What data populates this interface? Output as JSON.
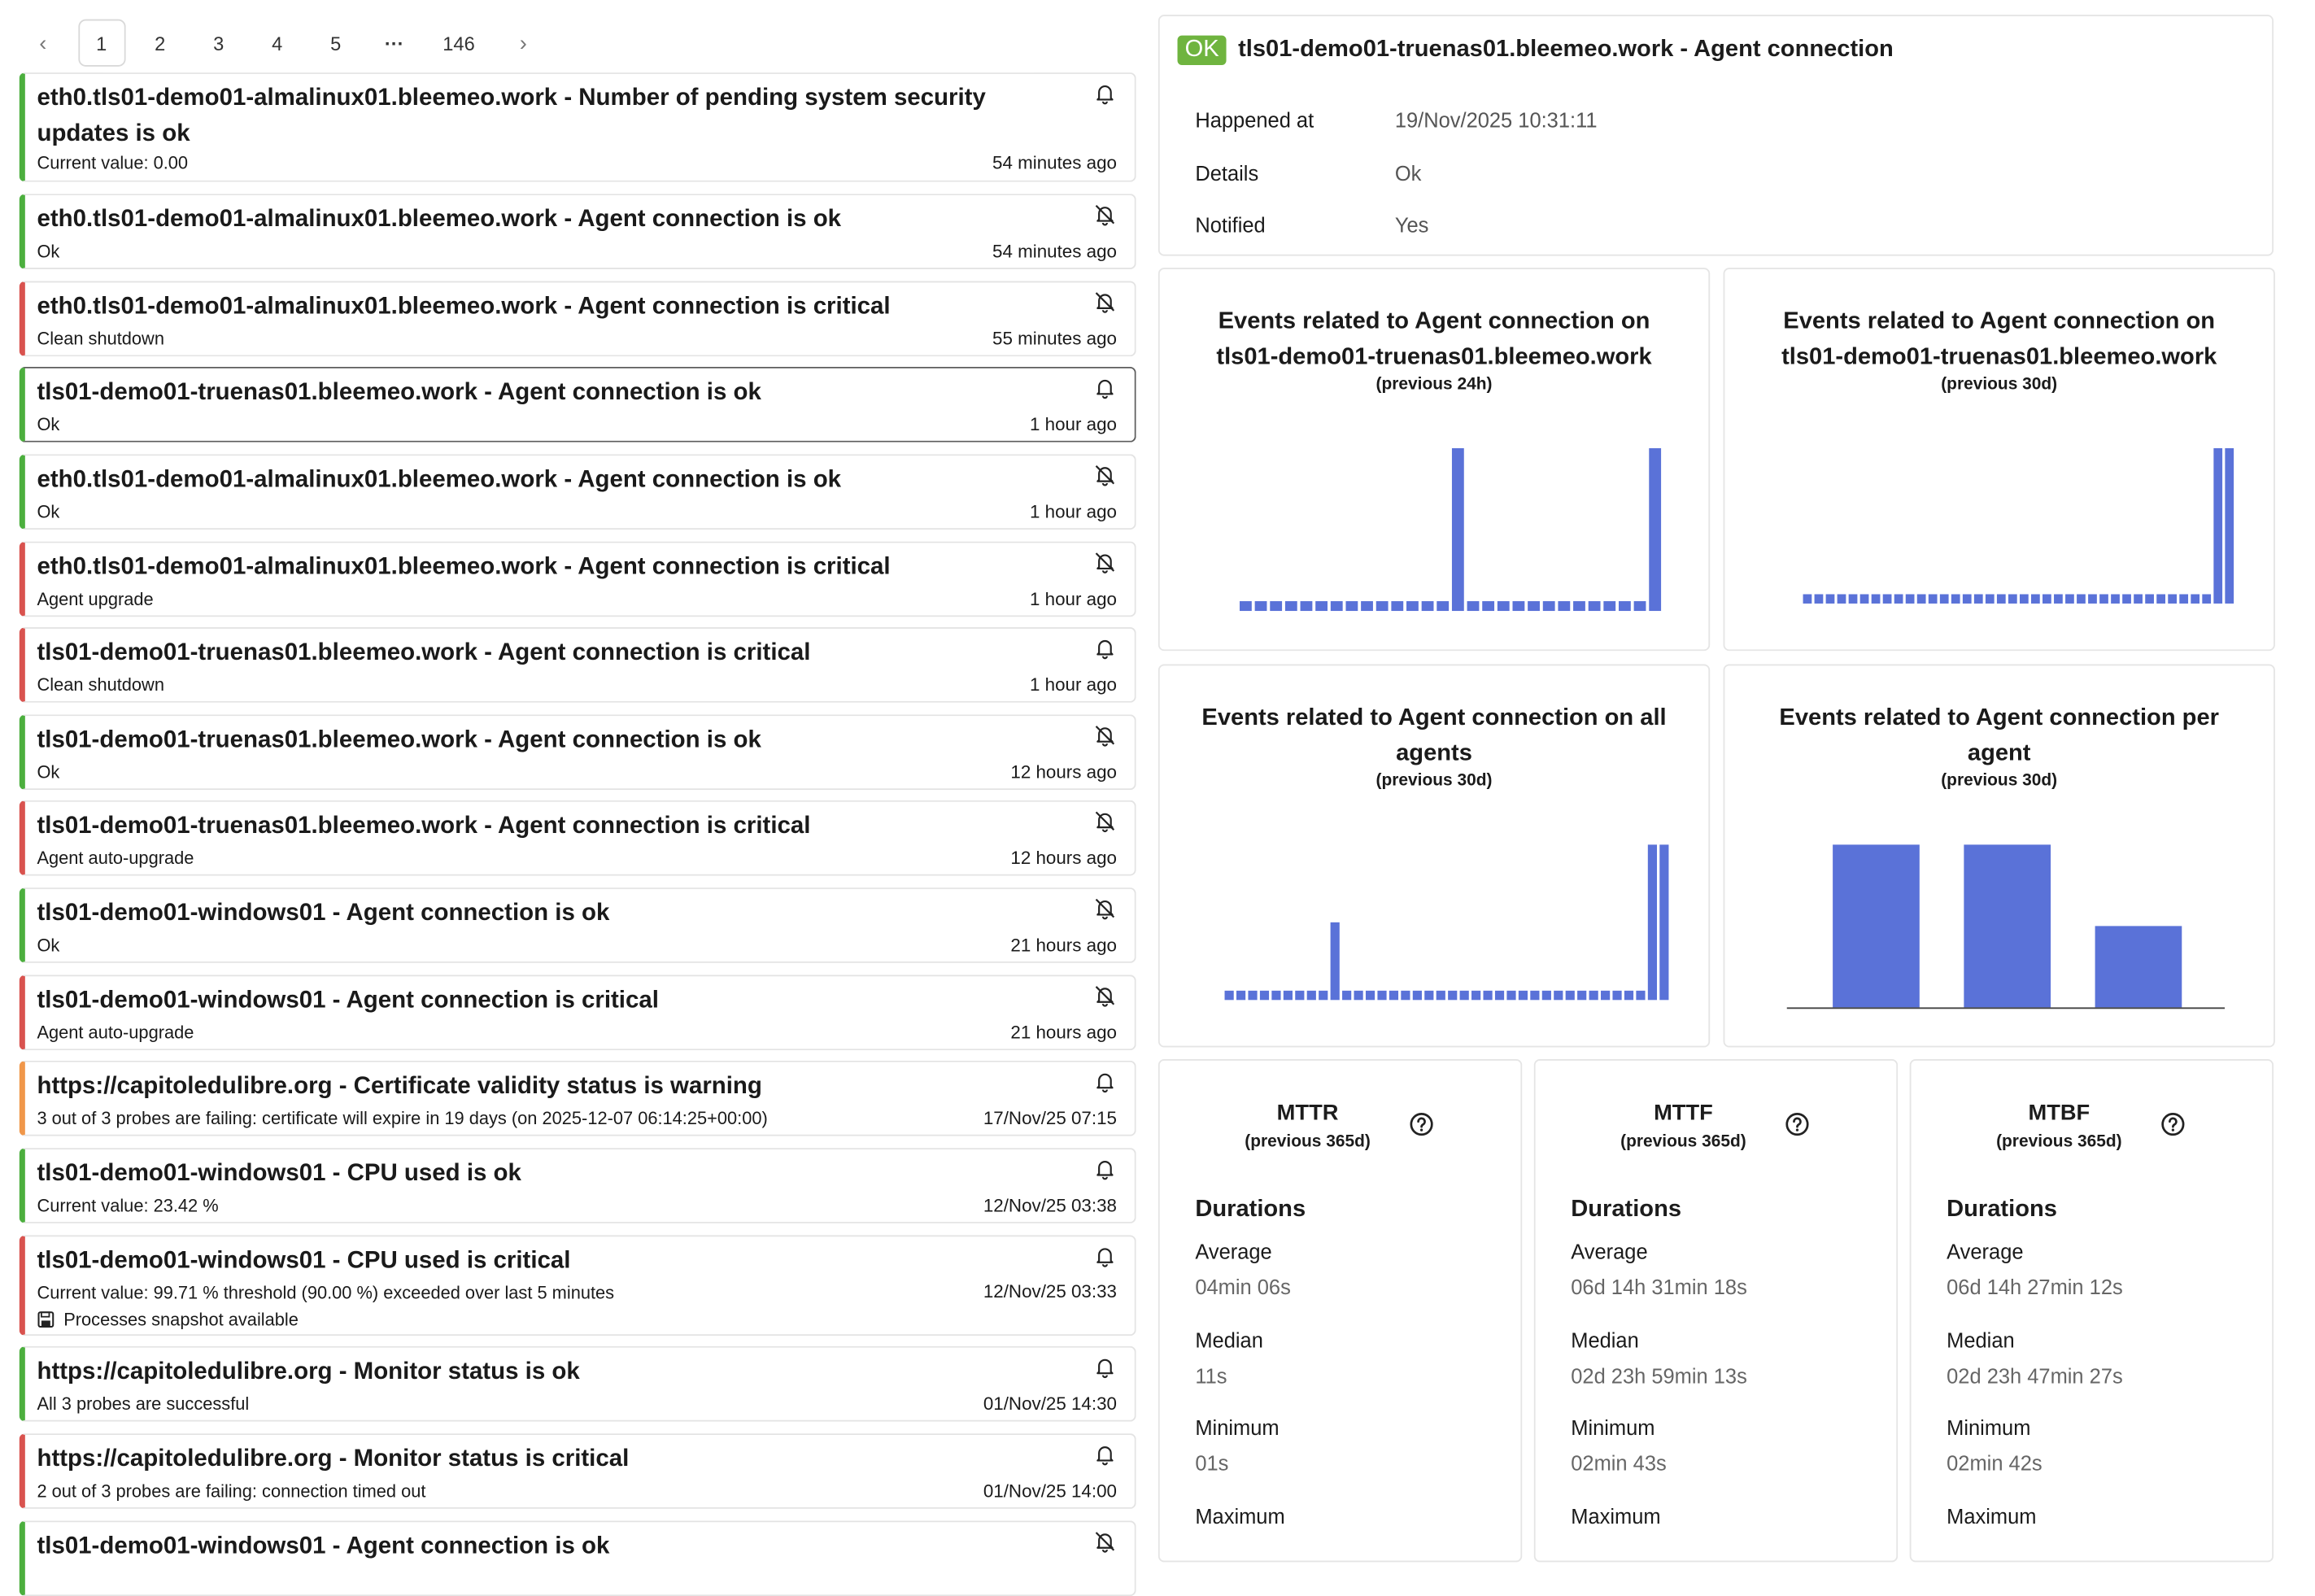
{
  "pagination": {
    "pages": [
      "1",
      "2",
      "3",
      "4",
      "5"
    ],
    "ellipsis": "···",
    "last": "146",
    "current": "1"
  },
  "events": [
    {
      "title": "eth0.tls01-demo01-almalinux01.bleemeo.work - Number of pending system security updates is ok",
      "sub": "Current value: 0.00",
      "time": "54 minutes ago",
      "status": "ok",
      "notif": "bell"
    },
    {
      "title": "eth0.tls01-demo01-almalinux01.bleemeo.work - Agent connection is ok",
      "sub": "Ok",
      "time": "54 minutes ago",
      "status": "ok",
      "notif": "bell-off"
    },
    {
      "title": "eth0.tls01-demo01-almalinux01.bleemeo.work - Agent connection is critical",
      "sub": "Clean shutdown",
      "time": "55 minutes ago",
      "status": "critical",
      "notif": "bell-off"
    },
    {
      "title": "tls01-demo01-truenas01.bleemeo.work - Agent connection is ok",
      "sub": "Ok",
      "time": "1 hour ago",
      "status": "ok",
      "notif": "bell",
      "selected": true
    },
    {
      "title": "eth0.tls01-demo01-almalinux01.bleemeo.work - Agent connection is ok",
      "sub": "Ok",
      "time": "1 hour ago",
      "status": "ok",
      "notif": "bell-off"
    },
    {
      "title": "eth0.tls01-demo01-almalinux01.bleemeo.work - Agent connection is critical",
      "sub": "Agent upgrade",
      "time": "1 hour ago",
      "status": "critical",
      "notif": "bell-off"
    },
    {
      "title": "tls01-demo01-truenas01.bleemeo.work - Agent connection is critical",
      "sub": "Clean shutdown",
      "time": "1 hour ago",
      "status": "critical",
      "notif": "bell"
    },
    {
      "title": "tls01-demo01-truenas01.bleemeo.work - Agent connection is ok",
      "sub": "Ok",
      "time": "12 hours ago",
      "status": "ok",
      "notif": "bell-off"
    },
    {
      "title": "tls01-demo01-truenas01.bleemeo.work - Agent connection is critical",
      "sub": "Agent auto-upgrade",
      "time": "12 hours ago",
      "status": "critical",
      "notif": "bell-off"
    },
    {
      "title": "tls01-demo01-windows01 - Agent connection is ok",
      "sub": "Ok",
      "time": "21 hours ago",
      "status": "ok",
      "notif": "bell-off"
    },
    {
      "title": "tls01-demo01-windows01 - Agent connection is critical",
      "sub": "Agent auto-upgrade",
      "time": "21 hours ago",
      "status": "critical",
      "notif": "bell-off"
    },
    {
      "title": "https://capitoledulibre.org - Certificate validity status is warning",
      "sub": "3 out of 3 probes are failing: certificate will expire in 19 days (on 2025-12-07 06:14:25+00:00)",
      "time": "17/Nov/25 07:15",
      "status": "warning",
      "notif": "bell"
    },
    {
      "title": "tls01-demo01-windows01 - CPU used is ok",
      "sub": "Current value: 23.42 %",
      "time": "12/Nov/25 03:38",
      "status": "ok",
      "notif": "bell"
    },
    {
      "title": "tls01-demo01-windows01 - CPU used is critical",
      "sub": "Current value: 99.71 % threshold (90.00 %) exceeded over last 5 minutes",
      "snapshot": "Processes snapshot available",
      "time": "12/Nov/25 03:33",
      "status": "critical",
      "notif": "bell"
    },
    {
      "title": "https://capitoledulibre.org - Monitor status is ok",
      "sub": "All 3 probes are successful",
      "time": "01/Nov/25 14:30",
      "status": "ok",
      "notif": "bell"
    },
    {
      "title": "https://capitoledulibre.org - Monitor status is critical",
      "sub": "2 out of 3 probes are failing: connection timed out",
      "time": "01/Nov/25 14:00",
      "status": "critical",
      "notif": "bell"
    },
    {
      "title": "tls01-demo01-windows01 - Agent connection is ok",
      "sub": "",
      "time": "",
      "status": "ok",
      "notif": "bell-off"
    }
  ],
  "detail": {
    "badge": "OK",
    "title": "tls01-demo01-truenas01.bleemeo.work - Agent connection",
    "rows": [
      {
        "key": "Happened at",
        "value": "19/Nov/2025 10:31:11"
      },
      {
        "key": "Details",
        "value": "Ok"
      },
      {
        "key": "Notified",
        "value": "Yes"
      }
    ]
  },
  "colors": {
    "ok": "#4caf3e",
    "critical": "#d9534f",
    "warning": "#f0974a",
    "bar": "#5a72d8"
  },
  "chart_data": [
    {
      "type": "bar",
      "title_lines": [
        "Events related to Agent connection on",
        "tls01-demo01-truenas01.bleemeo.work"
      ],
      "subtitle": "(previous 24h)",
      "values": [
        0.06,
        0.06,
        0.06,
        0.06,
        0.06,
        0.06,
        0.06,
        0.06,
        0.06,
        0.06,
        0.06,
        0.06,
        0.06,
        0.06,
        1,
        0.06,
        0.06,
        0.06,
        0.06,
        0.06,
        0.06,
        0.06,
        0.06,
        0.06,
        0.06,
        0.06,
        0.06,
        1
      ]
    },
    {
      "type": "bar",
      "title_lines": [
        "Events related to Agent connection on",
        "tls01-demo01-truenas01.bleemeo.work"
      ],
      "subtitle": "(previous 30d)",
      "values": [
        0.06,
        0.06,
        0.06,
        0.06,
        0.06,
        0.06,
        0.06,
        0.06,
        0.06,
        0.06,
        0.06,
        0.06,
        0.06,
        0.06,
        0.06,
        0.06,
        0.06,
        0.06,
        0.06,
        0.06,
        0.06,
        0.06,
        0.06,
        0.06,
        0.06,
        0.06,
        0.06,
        0.06,
        0.06,
        0.06,
        0.06,
        0.06,
        0.06,
        0.06,
        0.06,
        0.06,
        1,
        1
      ]
    },
    {
      "type": "bar",
      "title_lines": [
        "Events related to Agent connection on all",
        "agents"
      ],
      "subtitle": "(previous 30d)",
      "values": [
        0.06,
        0.06,
        0.06,
        0.06,
        0.06,
        0.06,
        0.06,
        0.06,
        0.06,
        0.5,
        0.06,
        0.06,
        0.06,
        0.06,
        0.06,
        0.06,
        0.06,
        0.06,
        0.06,
        0.06,
        0.06,
        0.06,
        0.06,
        0.06,
        0.06,
        0.06,
        0.06,
        0.06,
        0.06,
        0.06,
        0.06,
        0.06,
        0.06,
        0.06,
        0.06,
        0.06,
        1,
        1
      ]
    },
    {
      "type": "bar",
      "title_lines": [
        "Events related to Agent connection per",
        "agent"
      ],
      "subtitle": "(previous 30d)",
      "values": [
        1,
        1,
        0.5
      ]
    }
  ],
  "metrics": [
    {
      "name": "MTTR",
      "period": "(previous 365d)",
      "heading": "Durations",
      "stats": [
        {
          "label": "Average",
          "value": "04min 06s"
        },
        {
          "label": "Median",
          "value": "11s"
        },
        {
          "label": "Minimum",
          "value": "01s"
        },
        {
          "label": "Maximum",
          "value": ""
        }
      ]
    },
    {
      "name": "MTTF",
      "period": "(previous 365d)",
      "heading": "Durations",
      "stats": [
        {
          "label": "Average",
          "value": "06d 14h 31min 18s"
        },
        {
          "label": "Median",
          "value": "02d 23h 59min 13s"
        },
        {
          "label": "Minimum",
          "value": "02min 43s"
        },
        {
          "label": "Maximum",
          "value": ""
        }
      ]
    },
    {
      "name": "MTBF",
      "period": "(previous 365d)",
      "heading": "Durations",
      "stats": [
        {
          "label": "Average",
          "value": "06d 14h 27min 12s"
        },
        {
          "label": "Median",
          "value": "02d 23h 47min 27s"
        },
        {
          "label": "Minimum",
          "value": "02min 42s"
        },
        {
          "label": "Maximum",
          "value": ""
        }
      ]
    }
  ]
}
